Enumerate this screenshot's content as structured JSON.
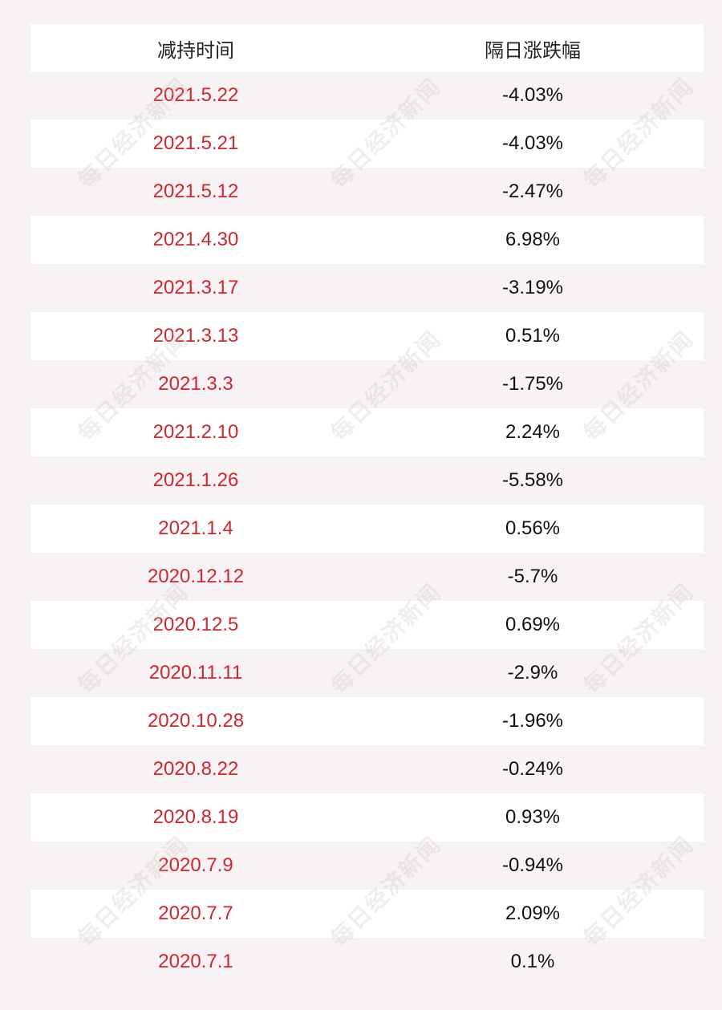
{
  "table": {
    "header": [
      "减持时间",
      "隔日涨跌幅"
    ],
    "rows": [
      [
        "2021.5.22",
        "-4.03%"
      ],
      [
        "2021.5.21",
        "-4.03%"
      ],
      [
        "2021.5.12",
        "-2.47%"
      ],
      [
        "2021.4.30",
        "6.98%"
      ],
      [
        "2021.3.17",
        "-3.19%"
      ],
      [
        "2021.3.13",
        "0.51%"
      ],
      [
        "2021.3.3",
        "-1.75%"
      ],
      [
        "2021.2.10",
        "2.24%"
      ],
      [
        "2021.1.26",
        "-5.58%"
      ],
      [
        "2021.1.4",
        "0.56%"
      ],
      [
        "2020.12.12",
        "-5.7%"
      ],
      [
        "2020.12.5",
        "0.69%"
      ],
      [
        "2020.11.11",
        "-2.9%"
      ],
      [
        "2020.10.28",
        "-1.96%"
      ],
      [
        "2020.8.22",
        "-0.24%"
      ],
      [
        "2020.8.19",
        "0.93%"
      ],
      [
        "2020.7.9",
        "-0.94%"
      ],
      [
        "2020.7.7",
        "2.09%"
      ],
      [
        "2020.7.1",
        "0.1%"
      ]
    ]
  },
  "watermark": "每日经济新闻"
}
